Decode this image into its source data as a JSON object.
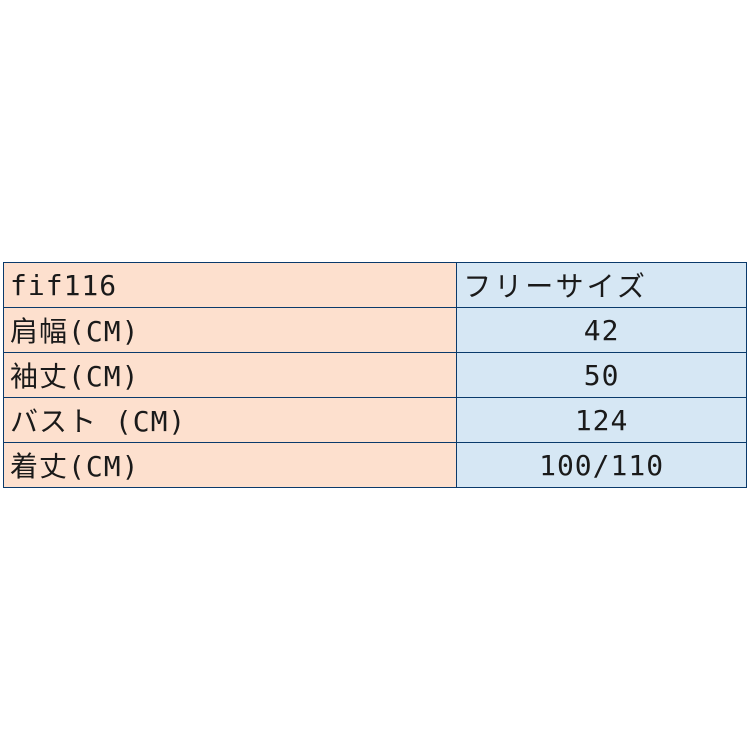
{
  "table": {
    "type": "table",
    "columns": [
      "label",
      "value"
    ],
    "column_widths": [
      "61%",
      "39%"
    ],
    "column_bg_colors": [
      "#fde0ce",
      "#d6e7f4"
    ],
    "border_color": "#0a3a6b",
    "font_size": 28,
    "text_color": "#1a1a1a",
    "rows": [
      {
        "label": "fif116",
        "value": "フリーサイズ"
      },
      {
        "label": "肩幅(CM)",
        "value": "42"
      },
      {
        "label": "袖丈(CM)",
        "value": "50"
      },
      {
        "label": "バスト (CM)",
        "value": "124"
      },
      {
        "label": "着丈(CM)",
        "value": "100/110"
      }
    ]
  }
}
